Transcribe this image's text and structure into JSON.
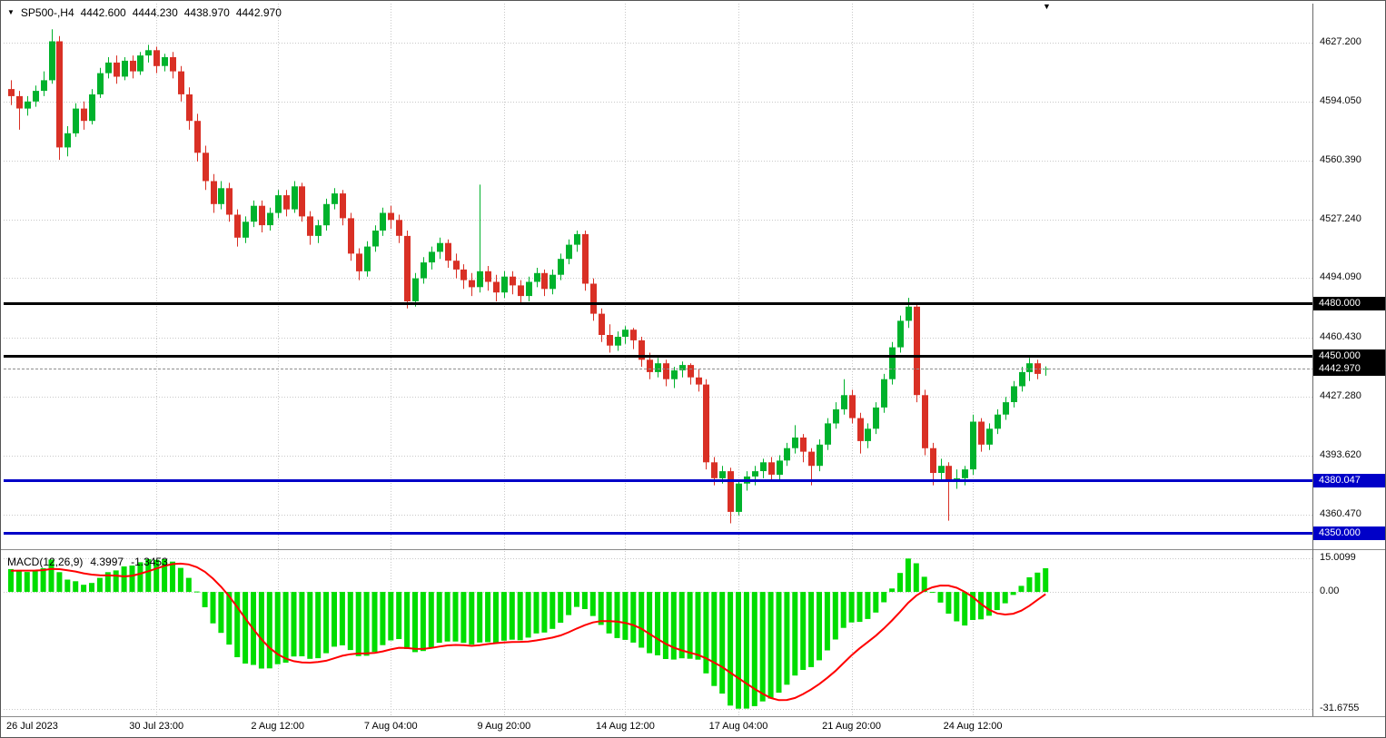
{
  "header": {
    "symbol_period": "SP500-,H4",
    "open": "4442.600",
    "high": "4444.230",
    "low": "4438.970",
    "close": "4442.970"
  },
  "icons": {
    "symbol_marker": "▼",
    "shift_marker": "▼"
  },
  "indicator": {
    "label": "MACD(12,26,9)",
    "macd_value": "4.3997",
    "signal_value": "-1.3453"
  },
  "colors": {
    "background": "#ffffff",
    "bull": "#00b22c",
    "bear": "#d93025",
    "macd_hist": "#00dd00",
    "macd_signal": "#ff0000",
    "level_black": "#000000",
    "level_blue": "#0000c8",
    "grid": "#c8c8c8",
    "axis_text": "#0a0a0a",
    "bid_line": "#8f8f8f"
  },
  "price_axis": {
    "ticks": [
      "4627.200",
      "4594.050",
      "4560.390",
      "4527.240",
      "4494.090",
      "4460.430",
      "4427.280",
      "4393.620",
      "4360.470"
    ],
    "tick_values": [
      4627.2,
      4594.05,
      4560.39,
      4527.24,
      4494.09,
      4460.43,
      4427.28,
      4393.62,
      4360.47
    ]
  },
  "levels": [
    {
      "value": 4480.0,
      "label": "4480.000",
      "color": "black",
      "type": "line"
    },
    {
      "value": 4450.0,
      "label": "4450.000",
      "color": "black",
      "type": "line"
    },
    {
      "value": 4442.97,
      "label": "4442.970",
      "color": "black",
      "type": "bid"
    },
    {
      "value": 4380.047,
      "label": "4380.047",
      "color": "blue",
      "type": "line"
    },
    {
      "value": 4350.0,
      "label": "4350.000",
      "color": "blue",
      "type": "line"
    }
  ],
  "macd_axis": {
    "top": "15.0099",
    "zero": "0.00",
    "bottom": "-31.6755"
  },
  "time_axis": {
    "labels": [
      {
        "index": 0,
        "text": "26 Jul 2023"
      },
      {
        "index": 18,
        "text": "30 Jul 23:00"
      },
      {
        "index": 33,
        "text": "2 Aug 12:00"
      },
      {
        "index": 47,
        "text": "7 Aug 04:00"
      },
      {
        "index": 61,
        "text": "9 Aug 20:00"
      },
      {
        "index": 76,
        "text": "14 Aug 12:00"
      },
      {
        "index": 90,
        "text": "17 Aug 04:00"
      },
      {
        "index": 104,
        "text": "21 Aug 20:00"
      },
      {
        "index": 119,
        "text": "24 Aug 12:00"
      }
    ]
  },
  "chart_data": {
    "type": "candlestick",
    "symbol": "SP500-",
    "timeframe": "H4",
    "title": "SP500-,H4",
    "ylim": [
      4340.9,
      4649.3
    ],
    "grid": true,
    "indicator": {
      "type": "MACD",
      "fast": 12,
      "slow": 26,
      "signal": 9,
      "last_macd": 4.3997,
      "last_signal": -1.3453,
      "scale_max": 15.0099,
      "scale_min": -31.6755
    },
    "candles": [
      [
        4601,
        4606,
        4592,
        4597
      ],
      [
        4597,
        4600,
        4578,
        4590
      ],
      [
        4590,
        4597,
        4586,
        4594
      ],
      [
        4594,
        4603,
        4591,
        4600
      ],
      [
        4600,
        4611,
        4597,
        4606
      ],
      [
        4606,
        4634.8,
        4604,
        4628
      ],
      [
        4628,
        4631,
        4561,
        4568
      ],
      [
        4568,
        4580,
        4563,
        4576
      ],
      [
        4576,
        4593,
        4574,
        4590
      ],
      [
        4590,
        4594,
        4578,
        4583
      ],
      [
        4583,
        4601,
        4581,
        4598
      ],
      [
        4598,
        4613,
        4596,
        4610
      ],
      [
        4610,
        4619,
        4607,
        4616
      ],
      [
        4616,
        4620,
        4604,
        4608
      ],
      [
        4608,
        4619,
        4606,
        4617
      ],
      [
        4617,
        4620,
        4607,
        4611
      ],
      [
        4611,
        4622,
        4609,
        4620
      ],
      [
        4620,
        4626,
        4616,
        4623
      ],
      [
        4623,
        4625,
        4610,
        4614
      ],
      [
        4614,
        4621,
        4611,
        4619
      ],
      [
        4619,
        4622,
        4607,
        4611
      ],
      [
        4611,
        4614,
        4594,
        4598
      ],
      [
        4598,
        4602,
        4578,
        4583
      ],
      [
        4583,
        4587,
        4560,
        4565
      ],
      [
        4565,
        4569,
        4544,
        4549
      ],
      [
        4549,
        4553,
        4531,
        4536
      ],
      [
        4536,
        4549,
        4533,
        4545
      ],
      [
        4545,
        4548,
        4526,
        4530
      ],
      [
        4530,
        4533,
        4512,
        4517
      ],
      [
        4517,
        4529,
        4514,
        4526
      ],
      [
        4526,
        4538,
        4523,
        4535
      ],
      [
        4535,
        4538,
        4520,
        4524
      ],
      [
        4524,
        4534,
        4521,
        4531
      ],
      [
        4531,
        4544,
        4528,
        4541
      ],
      [
        4541,
        4544,
        4529,
        4533
      ],
      [
        4533,
        4549,
        4531,
        4546
      ],
      [
        4546,
        4548,
        4526,
        4529
      ],
      [
        4529,
        4532,
        4513,
        4518
      ],
      [
        4518,
        4527,
        4514,
        4524
      ],
      [
        4524,
        4539,
        4521,
        4536
      ],
      [
        4536,
        4545,
        4533,
        4542
      ],
      [
        4542,
        4544,
        4524,
        4528
      ],
      [
        4528,
        4531,
        4504,
        4508
      ],
      [
        4508,
        4511,
        4493,
        4498
      ],
      [
        4498,
        4515,
        4495,
        4512
      ],
      [
        4512,
        4524,
        4509,
        4521
      ],
      [
        4521,
        4534,
        4518,
        4531
      ],
      [
        4531,
        4535,
        4522,
        4527
      ],
      [
        4527,
        4530,
        4514,
        4518
      ],
      [
        4518,
        4521,
        4477,
        4481
      ],
      [
        4481,
        4497,
        4478,
        4494
      ],
      [
        4494,
        4506,
        4491,
        4503
      ],
      [
        4503,
        4512,
        4499,
        4509
      ],
      [
        4509,
        4517,
        4505,
        4514
      ],
      [
        4514,
        4516,
        4500,
        4504
      ],
      [
        4504,
        4508,
        4494,
        4499
      ],
      [
        4499,
        4502,
        4488,
        4493
      ],
      [
        4493,
        4497,
        4484,
        4489
      ],
      [
        4489,
        4547,
        4486,
        4498
      ],
      [
        4498,
        4501,
        4487,
        4492
      ],
      [
        4492,
        4496,
        4481,
        4486
      ],
      [
        4486,
        4498,
        4483,
        4495
      ],
      [
        4495,
        4498,
        4485,
        4490
      ],
      [
        4490,
        4493,
        4479,
        4484
      ],
      [
        4484,
        4495,
        4481,
        4492
      ],
      [
        4492,
        4500,
        4489,
        4497
      ],
      [
        4497,
        4499,
        4484,
        4488
      ],
      [
        4488,
        4499,
        4485,
        4496
      ],
      [
        4496,
        4508,
        4493,
        4505
      ],
      [
        4505,
        4516,
        4502,
        4513
      ],
      [
        4513,
        4521,
        4509,
        4519
      ],
      [
        4519,
        4521,
        4487,
        4491
      ],
      [
        4491,
        4494,
        4470,
        4474
      ],
      [
        4474,
        4477,
        4458,
        4462
      ],
      [
        4462,
        4468,
        4452,
        4456
      ],
      [
        4456,
        4464,
        4453,
        4461
      ],
      [
        4461,
        4467,
        4457,
        4465
      ],
      [
        4465,
        4466,
        4454,
        4459
      ],
      [
        4459,
        4461,
        4444,
        4448
      ],
      [
        4448,
        4452,
        4437,
        4441
      ],
      [
        4441,
        4449,
        4438,
        4446
      ],
      [
        4446,
        4448,
        4433,
        4437
      ],
      [
        4437,
        4444,
        4432,
        4442
      ],
      [
        4442,
        4447,
        4438,
        4445
      ],
      [
        4445,
        4446,
        4434,
        4438
      ],
      [
        4438,
        4443,
        4430,
        4434
      ],
      [
        4434,
        4437,
        4386,
        4390
      ],
      [
        4390,
        4393,
        4377,
        4381
      ],
      [
        4381,
        4388,
        4378,
        4385
      ],
      [
        4385,
        4387,
        4355.5,
        4362
      ],
      [
        4362,
        4380,
        4360,
        4378
      ],
      [
        4378,
        4385,
        4374,
        4382
      ],
      [
        4382,
        4388,
        4377,
        4385
      ],
      [
        4385,
        4392,
        4381,
        4390
      ],
      [
        4390,
        4393,
        4379,
        4383
      ],
      [
        4383,
        4394,
        4380,
        4391
      ],
      [
        4391,
        4401,
        4388,
        4398
      ],
      [
        4398,
        4411,
        4395,
        4404
      ],
      [
        4404,
        4406,
        4390,
        4396
      ],
      [
        4396,
        4398,
        4377,
        4388
      ],
      [
        4388,
        4403,
        4385,
        4400
      ],
      [
        4400,
        4415,
        4397,
        4412
      ],
      [
        4412,
        4424,
        4409,
        4420
      ],
      [
        4420,
        4437,
        4417,
        4428
      ],
      [
        4428,
        4431,
        4412,
        4415
      ],
      [
        4415,
        4418,
        4395,
        4402
      ],
      [
        4402,
        4412,
        4398,
        4409
      ],
      [
        4409,
        4424,
        4406,
        4421
      ],
      [
        4421,
        4440,
        4418,
        4437
      ],
      [
        4437,
        4458,
        4434,
        4455
      ],
      [
        4455,
        4473,
        4452,
        4470
      ],
      [
        4470,
        4483,
        4466,
        4478
      ],
      [
        4478,
        4480,
        4424,
        4428
      ],
      [
        4428,
        4431,
        4394,
        4398
      ],
      [
        4398,
        4401,
        4377,
        4384
      ],
      [
        4384,
        4392,
        4379,
        4388
      ],
      [
        4388,
        4390,
        4357,
        4379
      ],
      [
        4379,
        4386,
        4375,
        4381
      ],
      [
        4381,
        4388,
        4377,
        4386
      ],
      [
        4386,
        4417,
        4383,
        4413
      ],
      [
        4413,
        4415,
        4396,
        4400
      ],
      [
        4400,
        4412,
        4397,
        4409
      ],
      [
        4409,
        4420,
        4406,
        4417
      ],
      [
        4417,
        4427,
        4414,
        4424
      ],
      [
        4424,
        4436,
        4421,
        4433
      ],
      [
        4433,
        4444,
        4430,
        4441
      ],
      [
        4441,
        4449,
        4436,
        4446
      ],
      [
        4446,
        4448,
        4437,
        4440
      ],
      [
        4442.6,
        4444.23,
        4438.97,
        4442.97
      ]
    ]
  }
}
